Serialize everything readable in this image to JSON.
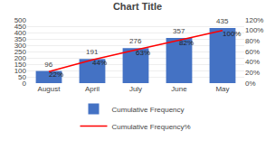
{
  "chart_data": {
    "type": "bar",
    "title": "Chart Title",
    "categories": [
      "August",
      "April",
      "July",
      "June",
      "May"
    ],
    "series": [
      {
        "name": "Cumulative Frequency",
        "type": "bar",
        "color": "#4472c4",
        "values": [
          96,
          191,
          276,
          357,
          435
        ]
      },
      {
        "name": "Cumulative Frequency%",
        "type": "line",
        "color": "#ff0000",
        "axis": "y2",
        "values": [
          22,
          44,
          63,
          82,
          100
        ],
        "value_labels": [
          "22%",
          "44%",
          "63%",
          "82%",
          "100%"
        ]
      }
    ],
    "ylim": [
      0,
      500
    ],
    "yticks": [
      0,
      50,
      100,
      150,
      200,
      250,
      300,
      350,
      400,
      450,
      500
    ],
    "y2lim": [
      0,
      120
    ],
    "y2ticks": [
      {
        "value": 0,
        "label": "0%"
      },
      {
        "value": 20,
        "label": "20%"
      },
      {
        "value": 40,
        "label": "40%"
      },
      {
        "value": 60,
        "label": "60%"
      },
      {
        "value": 80,
        "label": "80%"
      },
      {
        "value": 100,
        "label": "100%"
      },
      {
        "value": 120,
        "label": "120%"
      }
    ],
    "grid": true,
    "legend": "bottom",
    "data_labels": true
  }
}
